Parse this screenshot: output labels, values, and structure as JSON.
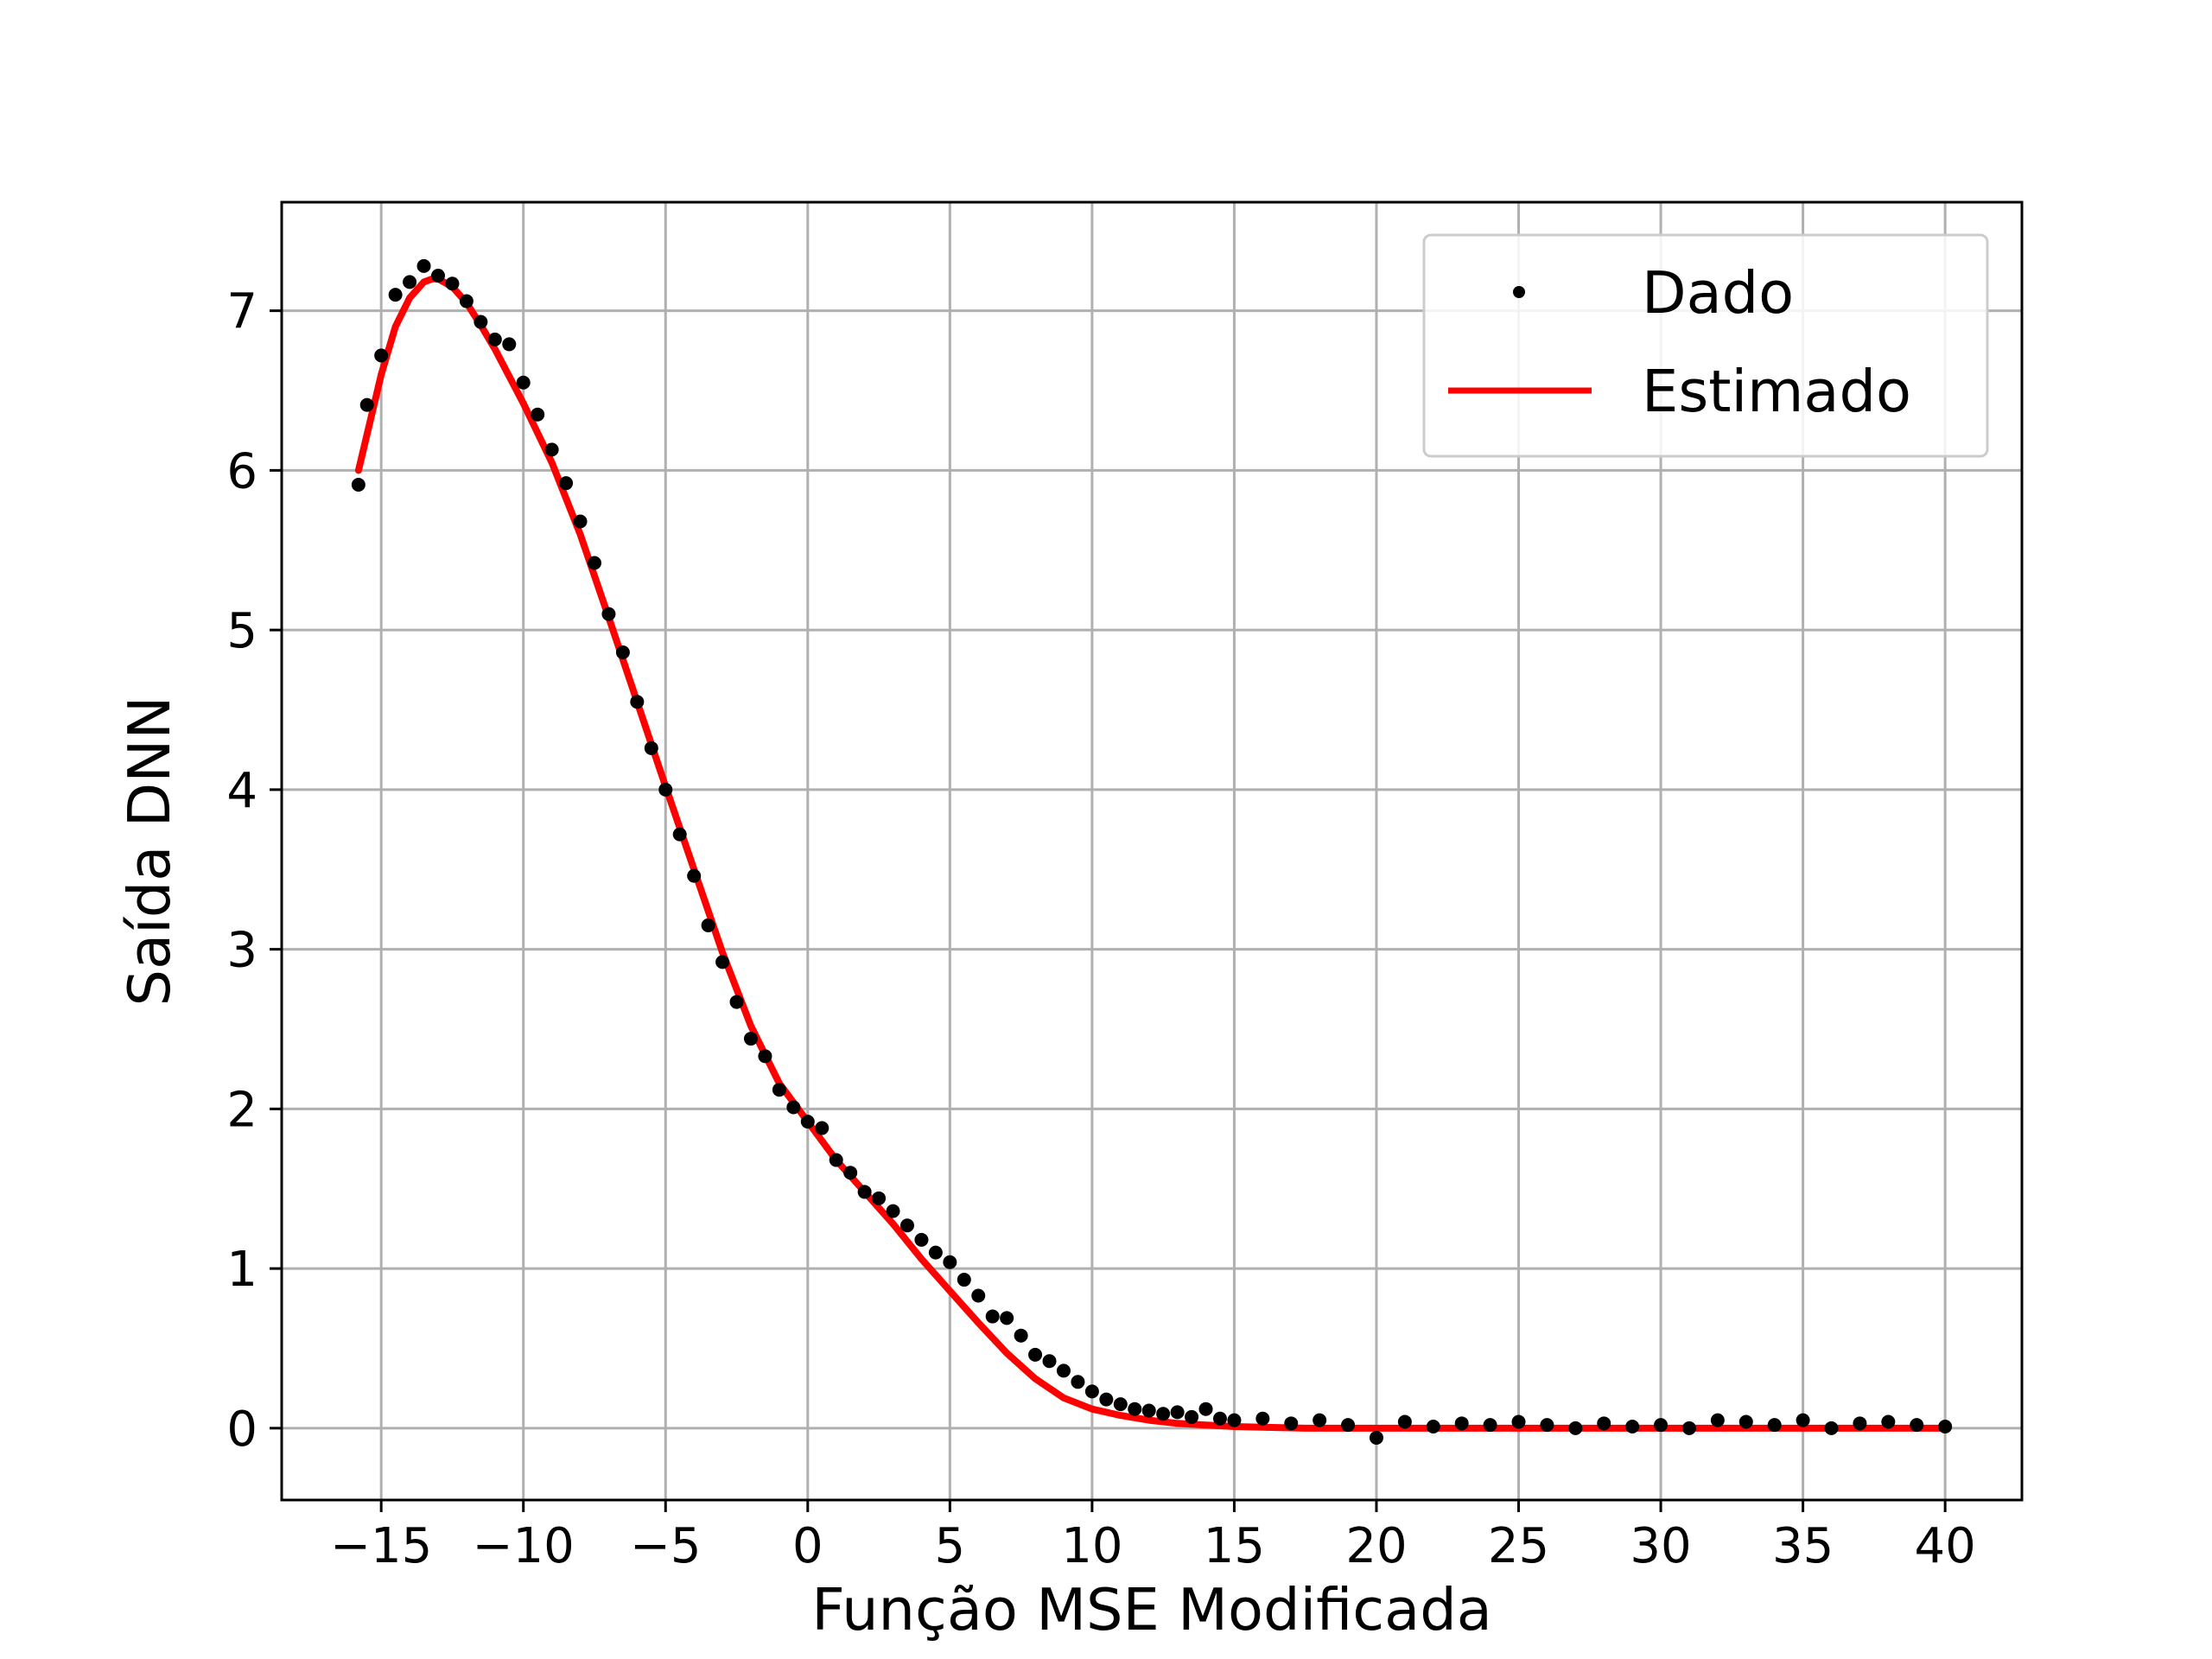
{
  "chart_data": {
    "type": "scatter",
    "title": "",
    "xlabel": "Função MSE Modificada",
    "ylabel": "Saída DNN",
    "xlim": [
      -18.5,
      42.7
    ],
    "ylim": [
      -0.45,
      7.68
    ],
    "xticks": [
      -15,
      -10,
      -5,
      0,
      5,
      10,
      15,
      20,
      25,
      30,
      35,
      40
    ],
    "xtick_labels": [
      "−15",
      "−10",
      "−5",
      "0",
      "5",
      "10",
      "15",
      "20",
      "25",
      "30",
      "35",
      "40"
    ],
    "yticks": [
      0,
      1,
      2,
      3,
      4,
      5,
      6,
      7
    ],
    "ytick_labels": [
      "0",
      "1",
      "2",
      "3",
      "4",
      "5",
      "6",
      "7"
    ],
    "grid": true,
    "legend_position": "top-right",
    "series": [
      {
        "name": "Dado",
        "style": "points",
        "color": "#000000",
        "x": [
          -15.8,
          -15.5,
          -15.0,
          -14.5,
          -14.0,
          -13.5,
          -13.0,
          -12.5,
          -12.0,
          -11.5,
          -11.0,
          -10.5,
          -10.0,
          -9.5,
          -9.0,
          -8.5,
          -8.0,
          -7.5,
          -7.0,
          -6.5,
          -6.0,
          -5.5,
          -5.0,
          -4.5,
          -4.0,
          -3.5,
          -3.0,
          -2.5,
          -2.0,
          -1.5,
          -1.0,
          -0.5,
          0.0,
          0.5,
          1.0,
          1.5,
          2.0,
          2.5,
          3.0,
          3.5,
          4.0,
          4.5,
          5.0,
          5.5,
          6.0,
          6.5,
          7.0,
          7.5,
          8.0,
          8.5,
          9.0,
          9.5,
          10.0,
          10.5,
          11.0,
          11.5,
          12.0,
          12.5,
          13.0,
          13.5,
          14.0,
          14.5,
          15.0,
          16.0,
          17.0,
          18.0,
          19.0,
          20.0,
          21.0,
          22.0,
          23.0,
          24.0,
          25.0,
          26.0,
          27.0,
          28.0,
          29.0,
          30.0,
          31.0,
          32.0,
          33.0,
          34.0,
          35.0,
          36.0,
          37.0,
          38.0,
          39.0,
          40.0
        ],
        "y": [
          5.91,
          6.41,
          6.72,
          7.1,
          7.18,
          7.28,
          7.22,
          7.17,
          7.06,
          6.93,
          6.82,
          6.79,
          6.55,
          6.35,
          6.13,
          5.92,
          5.68,
          5.42,
          5.1,
          4.86,
          4.55,
          4.26,
          4.0,
          3.72,
          3.46,
          3.15,
          2.92,
          2.67,
          2.44,
          2.33,
          2.12,
          2.01,
          1.92,
          1.88,
          1.68,
          1.6,
          1.48,
          1.44,
          1.36,
          1.27,
          1.18,
          1.1,
          1.04,
          0.93,
          0.83,
          0.7,
          0.69,
          0.58,
          0.46,
          0.42,
          0.36,
          0.29,
          0.23,
          0.18,
          0.15,
          0.12,
          0.11,
          0.09,
          0.1,
          0.07,
          0.12,
          0.06,
          0.05,
          0.06,
          0.03,
          0.05,
          0.02,
          -0.06,
          0.04,
          0.01,
          0.03,
          0.02,
          0.04,
          0.02,
          0.0,
          0.03,
          0.01,
          0.02,
          0.0,
          0.05,
          0.04,
          0.02,
          0.05,
          0.0,
          0.03,
          0.04,
          0.02,
          0.01
        ]
      },
      {
        "name": "Estimado",
        "style": "line",
        "color": "#ff0000",
        "x": [
          -15.8,
          -15.0,
          -14.5,
          -14.0,
          -13.5,
          -13.2,
          -13.0,
          -12.5,
          -12.0,
          -11.5,
          -11.0,
          -10.0,
          -9.0,
          -8.0,
          -7.0,
          -6.0,
          -5.0,
          -4.0,
          -3.0,
          -2.0,
          -1.0,
          0.0,
          1.0,
          2.0,
          3.0,
          4.0,
          5.0,
          6.0,
          7.0,
          8.0,
          9.0,
          10.0,
          11.0,
          12.0,
          13.0,
          14.0,
          15.0,
          17.5,
          20.0,
          25.0,
          30.0,
          35.0,
          40.0
        ],
        "y": [
          6.0,
          6.6,
          6.9,
          7.08,
          7.18,
          7.2,
          7.2,
          7.15,
          7.05,
          6.91,
          6.76,
          6.42,
          6.05,
          5.6,
          5.08,
          4.55,
          4.02,
          3.5,
          2.98,
          2.52,
          2.16,
          1.92,
          1.68,
          1.48,
          1.28,
          1.06,
          0.86,
          0.66,
          0.47,
          0.31,
          0.19,
          0.12,
          0.08,
          0.05,
          0.03,
          0.02,
          0.01,
          0.0,
          0.0,
          0.0,
          0.0,
          0.0,
          0.0
        ]
      }
    ]
  }
}
